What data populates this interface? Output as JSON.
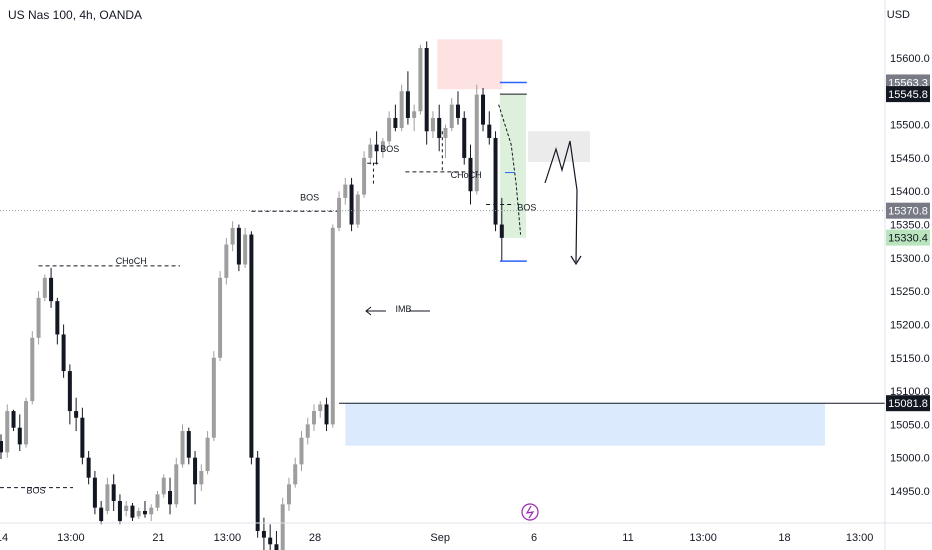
{
  "header": {
    "title": "US Nas 100, 4h, OANDA",
    "currency": "USD"
  },
  "colors": {
    "up": "#9e9e9e",
    "down": "#131722",
    "bg": "#ffffff",
    "supply": "#fde2e2",
    "demand": "#dbeafd",
    "profit": "#dcf0dc",
    "neutral": "#ebebeb"
  },
  "chart_data": {
    "type": "candlestick",
    "title": "US Nas 100, 4h, OANDA",
    "ylabel": "USD",
    "ylim": [
      14908,
      15655
    ],
    "y_ticks": [
      15600.0,
      15550.0,
      15500.0,
      15450.0,
      15400.0,
      15350.0,
      15300.0,
      15250.0,
      15200.0,
      15150.0,
      15100.0,
      15050.0,
      15000.0,
      14950.0
    ],
    "x_ticks": [
      {
        "label": "14",
        "index": 0
      },
      {
        "label": "13:00",
        "index": 11
      },
      {
        "label": "21",
        "index": 25
      },
      {
        "label": "13:00",
        "index": 36
      },
      {
        "label": "28",
        "index": 50
      },
      {
        "label": "Sep",
        "index": 70
      },
      {
        "label": "6",
        "index": 85
      },
      {
        "label": "11",
        "index": 100
      },
      {
        "label": "13:00",
        "index": 112
      },
      {
        "label": "18",
        "index": 125
      },
      {
        "label": "13:00",
        "index": 137
      }
    ],
    "candles": [
      [
        15025,
        15035,
        14998,
        15008
      ],
      [
        15008,
        15080,
        15000,
        15070
      ],
      [
        15070,
        15072,
        15040,
        15045
      ],
      [
        15045,
        15065,
        15010,
        15020
      ],
      [
        15020,
        15090,
        15015,
        15085
      ],
      [
        15085,
        15190,
        15080,
        15180
      ],
      [
        15180,
        15250,
        15170,
        15240
      ],
      [
        15240,
        15275,
        15235,
        15270
      ],
      [
        15270,
        15285,
        15225,
        15235
      ],
      [
        15235,
        15240,
        15170,
        15185
      ],
      [
        15185,
        15200,
        15120,
        15130
      ],
      [
        15130,
        15140,
        15050,
        15070
      ],
      [
        15070,
        15090,
        15040,
        15060
      ],
      [
        15060,
        15075,
        14990,
        15000
      ],
      [
        15000,
        15010,
        14960,
        14970
      ],
      [
        14970,
        14980,
        14915,
        14925
      ],
      [
        14925,
        14935,
        14900,
        14905
      ],
      [
        14920,
        14970,
        14915,
        14960
      ],
      [
        14960,
        14975,
        14920,
        14935
      ],
      [
        14935,
        14945,
        14900,
        14905
      ],
      [
        14920,
        14935,
        14912,
        14928
      ],
      [
        14928,
        14932,
        14905,
        14910
      ],
      [
        14912,
        14925,
        14908,
        14920
      ],
      [
        14920,
        14935,
        14910,
        14915
      ],
      [
        14915,
        14930,
        14905,
        14925
      ],
      [
        14925,
        14950,
        14920,
        14945
      ],
      [
        14945,
        14975,
        14940,
        14970
      ],
      [
        14950,
        14970,
        14915,
        14930
      ],
      [
        14930,
        15000,
        14925,
        14990
      ],
      [
        14990,
        15050,
        14985,
        15040
      ],
      [
        15040,
        15045,
        14990,
        15000
      ],
      [
        15000,
        15010,
        14930,
        14960
      ],
      [
        14960,
        14990,
        14950,
        14980
      ],
      [
        14980,
        15040,
        14975,
        15030
      ],
      [
        15030,
        15160,
        15025,
        15150
      ],
      [
        15150,
        15280,
        15145,
        15270
      ],
      [
        15270,
        15330,
        15260,
        15320
      ],
      [
        15320,
        15355,
        15310,
        15345
      ],
      [
        15345,
        15350,
        15280,
        15290
      ],
      [
        15290,
        15345,
        15285,
        15335
      ],
      [
        15335,
        15340,
        14990,
        15000
      ],
      [
        15000,
        15010,
        14880,
        14890
      ],
      [
        14890,
        14910,
        14860,
        14880
      ],
      [
        14880,
        14900,
        14850,
        14870
      ],
      [
        14870,
        14890,
        14840,
        14850
      ],
      [
        14850,
        14940,
        14845,
        14930
      ],
      [
        14930,
        14970,
        14920,
        14960
      ],
      [
        14960,
        15000,
        14955,
        14990
      ],
      [
        14990,
        15040,
        14980,
        15030
      ],
      [
        15030,
        15060,
        15020,
        15050
      ],
      [
        15050,
        15080,
        15040,
        15070
      ],
      [
        15070,
        15085,
        15060,
        15080
      ],
      [
        15080,
        15090,
        15040,
        15050
      ],
      [
        15050,
        15350,
        15045,
        15345
      ],
      [
        15345,
        15400,
        15340,
        15390
      ],
      [
        15390,
        15420,
        15380,
        15410
      ],
      [
        15410,
        15420,
        15340,
        15350
      ],
      [
        15350,
        15400,
        15345,
        15395
      ],
      [
        15395,
        15460,
        15390,
        15450
      ],
      [
        15450,
        15480,
        15440,
        15470
      ],
      [
        15470,
        15490,
        15440,
        15460
      ],
      [
        15460,
        15480,
        15450,
        15475
      ],
      [
        15475,
        15520,
        15470,
        15510
      ],
      [
        15510,
        15530,
        15490,
        15495
      ],
      [
        15495,
        15560,
        15490,
        15550
      ],
      [
        15550,
        15580,
        15500,
        15510
      ],
      [
        15510,
        15530,
        15490,
        15520
      ],
      [
        15520,
        15620,
        15515,
        15615
      ],
      [
        15615,
        15625,
        15470,
        15490
      ],
      [
        15490,
        15520,
        15480,
        15510
      ],
      [
        15510,
        15530,
        15460,
        15480
      ],
      [
        15480,
        15500,
        15450,
        15495
      ],
      [
        15495,
        15540,
        15490,
        15530
      ],
      [
        15530,
        15550,
        15500,
        15510
      ],
      [
        15510,
        15520,
        15440,
        15450
      ],
      [
        15450,
        15470,
        15380,
        15400
      ],
      [
        15400,
        15560,
        15395,
        15545
      ],
      [
        15545,
        15555,
        15490,
        15500
      ],
      [
        15500,
        15520,
        15470,
        15480
      ],
      [
        15480,
        15490,
        15340,
        15350
      ],
      [
        15350,
        15390,
        15295,
        15330
      ]
    ],
    "annotations": [
      {
        "type": "label",
        "text": "CHoCH",
        "x": 20.8,
        "price": 15288
      },
      {
        "type": "label",
        "text": "BOS",
        "x": 5.6,
        "price": 14943
      },
      {
        "type": "label",
        "text": "BOS",
        "x": 49.3,
        "price": 15383
      },
      {
        "type": "label",
        "text": "BOS",
        "x": 62.1,
        "price": 15456
      },
      {
        "type": "label",
        "text": "CHoCH",
        "x": 74.3,
        "price": 15417
      },
      {
        "type": "label",
        "text": "BOS",
        "x": 84.0,
        "price": 15368
      },
      {
        "type": "label",
        "text": "IMB",
        "x": 64.3,
        "price": 15216
      }
    ]
  },
  "price_tags": [
    {
      "text": "15563.3",
      "bg": "#787b86",
      "fg": "#ffffff"
    },
    {
      "text": "15545.8",
      "bg": "#131722",
      "fg": "#ffffff"
    },
    {
      "text": "15370.8",
      "bg": "#787b86",
      "fg": "#ffffff"
    },
    {
      "text": "15330.4",
      "bg": "#b9e4bd",
      "fg": "#131722"
    },
    {
      "text": "15081.8",
      "bg": "#131722",
      "fg": "#ffffff"
    }
  ]
}
